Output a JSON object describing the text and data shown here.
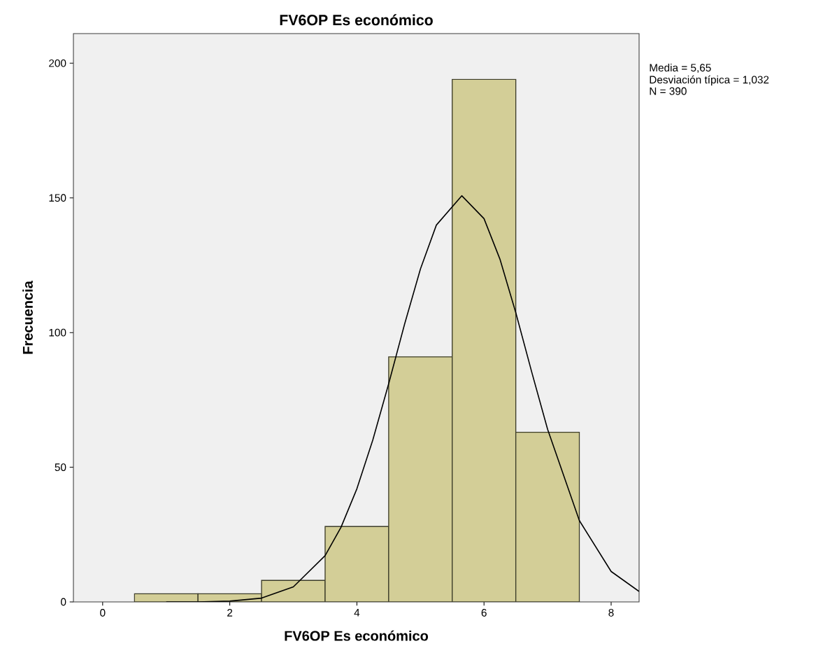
{
  "chart_data": {
    "type": "histogram",
    "title": "FV6OP Es económico",
    "xlabel": "FV6OP Es económico",
    "ylabel": "Frecuencia",
    "bins": [
      0.5,
      1.5,
      2.5,
      3.5,
      4.5,
      5.5,
      6.5,
      7.5
    ],
    "values": [
      3,
      3,
      8,
      28,
      91,
      194,
      63
    ],
    "color": "#d3ce97",
    "series": [
      {
        "type": "line",
        "color": "#000000",
        "x": [
          1.0,
          1.5,
          2.0,
          2.5,
          3.0,
          3.5,
          3.75,
          4.0,
          4.25,
          4.5,
          4.75,
          5.0,
          5.25,
          5.65,
          6.0,
          6.25,
          6.5,
          6.75,
          7.0,
          7.5,
          8.0,
          8.44
        ],
        "values": [
          0,
          0,
          0.3,
          1.4,
          5.6,
          17.2,
          27.7,
          42.0,
          60.1,
          81.0,
          103.1,
          123.6,
          139.9,
          150.8,
          142.3,
          127.3,
          107.4,
          85.4,
          64.1,
          30.2,
          11.3,
          3.9
        ]
      }
    ],
    "xlim": [
      -0.46,
      8.44
    ],
    "ylim": [
      0,
      211
    ],
    "xticks": [
      0,
      2,
      4,
      6,
      8
    ],
    "yticks": [
      0,
      50,
      100,
      150,
      200
    ],
    "annotations": [
      "Media = 5,65",
      "Desviación típica = 1,032",
      "N = 390"
    ]
  }
}
